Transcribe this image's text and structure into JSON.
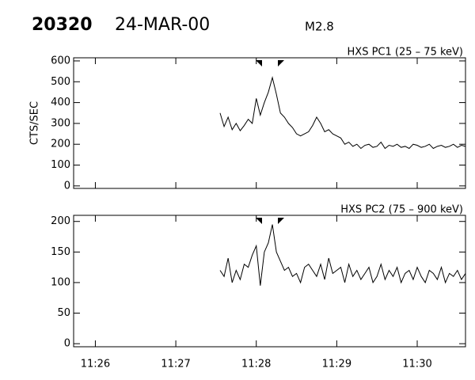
{
  "header": {
    "event": "20320",
    "date": "24-MAR-00",
    "class": "M2.8"
  },
  "chart_data": [
    {
      "type": "line",
      "title": "HXS PC1 (25 – 75 keV)",
      "ylabel": "CTS/SEC",
      "color": "#000000",
      "x": [
        687.55,
        687.6,
        687.65,
        687.7,
        687.75,
        687.8,
        687.85,
        687.9,
        687.95,
        688,
        688.05,
        688.1,
        688.15,
        688.2,
        688.25,
        688.3,
        688.35,
        688.4,
        688.45,
        688.5,
        688.55,
        688.6,
        688.65,
        688.7,
        688.75,
        688.8,
        688.85,
        688.9,
        688.95,
        689,
        689.05,
        689.1,
        689.15,
        689.2,
        689.25,
        689.3,
        689.35,
        689.4,
        689.45,
        689.5,
        689.55,
        689.6,
        689.65,
        689.7,
        689.75,
        689.8,
        689.85,
        689.9,
        689.95,
        690,
        690.05,
        690.1,
        690.15,
        690.2,
        690.25,
        690.3,
        690.35,
        690.4,
        690.45,
        690.5,
        690.55,
        690.6
      ],
      "values": [
        350,
        285,
        330,
        270,
        300,
        265,
        290,
        320,
        300,
        420,
        340,
        400,
        450,
        520,
        440,
        350,
        330,
        300,
        280,
        250,
        240,
        250,
        260,
        290,
        330,
        300,
        260,
        270,
        250,
        240,
        230,
        200,
        210,
        190,
        200,
        180,
        195,
        200,
        185,
        190,
        210,
        180,
        195,
        190,
        200,
        185,
        190,
        180,
        200,
        195,
        185,
        190,
        200,
        180,
        190,
        195,
        185,
        190,
        200,
        185,
        195,
        190
      ],
      "xlim": [
        685.73,
        690.6
      ],
      "xticks": [
        686,
        687,
        688,
        689,
        690
      ],
      "ylim": [
        -12,
        615
      ],
      "yticks": [
        0,
        100,
        200,
        300,
        400,
        500,
        600
      ]
    },
    {
      "type": "line",
      "title": "HXS PC2 (75 – 900 keV)",
      "color": "#000000",
      "x": [
        687.55,
        687.6,
        687.65,
        687.7,
        687.75,
        687.8,
        687.85,
        687.9,
        687.95,
        688,
        688.05,
        688.1,
        688.15,
        688.2,
        688.25,
        688.3,
        688.35,
        688.4,
        688.45,
        688.5,
        688.55,
        688.6,
        688.65,
        688.7,
        688.75,
        688.8,
        688.85,
        688.9,
        688.95,
        689,
        689.05,
        689.1,
        689.15,
        689.2,
        689.25,
        689.3,
        689.35,
        689.4,
        689.45,
        689.5,
        689.55,
        689.6,
        689.65,
        689.7,
        689.75,
        689.8,
        689.85,
        689.9,
        689.95,
        690,
        690.05,
        690.1,
        690.15,
        690.2,
        690.25,
        690.3,
        690.35,
        690.4,
        690.45,
        690.5,
        690.55,
        690.6
      ],
      "values": [
        120,
        110,
        140,
        100,
        120,
        105,
        130,
        125,
        145,
        160,
        95,
        150,
        165,
        195,
        150,
        135,
        120,
        125,
        110,
        115,
        100,
        125,
        130,
        120,
        110,
        130,
        105,
        140,
        115,
        120,
        125,
        100,
        130,
        110,
        120,
        105,
        115,
        125,
        100,
        110,
        130,
        105,
        120,
        110,
        125,
        100,
        115,
        120,
        105,
        125,
        110,
        100,
        120,
        115,
        105,
        125,
        100,
        115,
        110,
        120,
        105,
        115
      ],
      "xlim": [
        685.73,
        690.6
      ],
      "xticks": [
        {
          "value": 686,
          "label": "11:26"
        },
        {
          "value": 687,
          "label": "11:27"
        },
        {
          "value": 688,
          "label": "11:28"
        },
        {
          "value": 689,
          "label": "11:29"
        },
        {
          "value": 690,
          "label": "11:30"
        }
      ],
      "ylim": [
        -5,
        210
      ],
      "yticks": [
        0,
        50,
        100,
        150,
        200
      ]
    }
  ]
}
